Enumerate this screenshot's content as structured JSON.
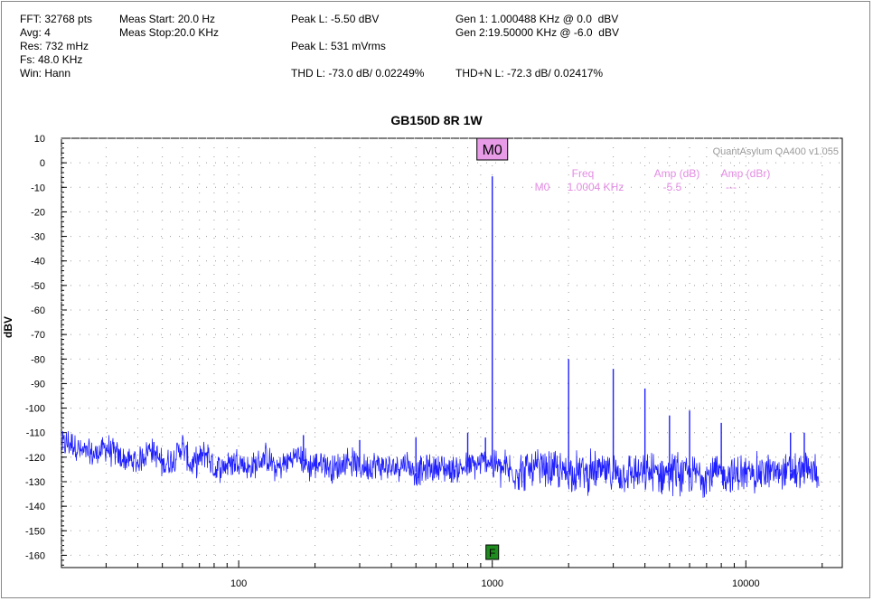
{
  "header": {
    "fft": "FFT: 32768 pts",
    "avg": "Avg: 4",
    "res": "Res: 732 mHz",
    "fs": "Fs: 48.0 KHz",
    "win": "Win: Hann",
    "meas_start": "Meas Start: 20.0 Hz",
    "meas_stop": "Meas Stop:20.0 KHz",
    "peak_dbv": "Peak L: -5.50 dBV",
    "peak_vrms": "Peak L: 531 mVrms",
    "thd": "THD L: -73.0 dB/ 0.02249%",
    "thdn": "THD+N L: -72.3 dB/ 0.02417%",
    "gen1": "Gen 1: 1.000488 KHz @ 0.0  dBV",
    "gen2": "Gen 2:19.50000 KHz @ -6.0  dBV"
  },
  "watermark": "QuantAsylum QA400 v1.055",
  "marker": {
    "label": "M0",
    "freq_header": "Freq",
    "amp_header": "Amp (dB)",
    "ampr_header": "Amp (dBr)",
    "row_name": "M0",
    "row_freq": "1.0004 KHz",
    "row_amp": "-5.5",
    "row_ampr": "---",
    "f_label": "F"
  },
  "colors": {
    "trace": "#1f1fff",
    "marker_bg": "#e89ce8",
    "marker_text": "#e38ce3",
    "f_bg": "#1e8c1e",
    "grid": "#9a9a9a"
  },
  "chart_data": {
    "type": "line",
    "title": "GB150D 8R 1W",
    "xlabel": "",
    "ylabel": "dBV",
    "xscale": "log",
    "xlim": [
      20,
      24000
    ],
    "ylim": [
      -165,
      10
    ],
    "x_ticks": [
      100,
      1000,
      10000
    ],
    "y_ticks": [
      10,
      0,
      -10,
      -20,
      -30,
      -40,
      -50,
      -60,
      -70,
      -80,
      -90,
      -100,
      -110,
      -120,
      -130,
      -140,
      -150,
      -160
    ],
    "grid": true,
    "noise_floor": [
      [
        20,
        -115
      ],
      [
        22,
        -114
      ],
      [
        24,
        -118
      ],
      [
        27,
        -119
      ],
      [
        30,
        -116
      ],
      [
        35,
        -121
      ],
      [
        40,
        -122
      ],
      [
        45,
        -116
      ],
      [
        50,
        -123
      ],
      [
        55,
        -121
      ],
      [
        60,
        -115
      ],
      [
        65,
        -124
      ],
      [
        70,
        -121
      ],
      [
        75,
        -118
      ],
      [
        80,
        -125
      ],
      [
        90,
        -123
      ],
      [
        100,
        -121
      ],
      [
        110,
        -125
      ],
      [
        120,
        -122
      ],
      [
        130,
        -120
      ],
      [
        140,
        -125
      ],
      [
        150,
        -123
      ],
      [
        170,
        -119
      ],
      [
        190,
        -124
      ],
      [
        210,
        -122
      ],
      [
        240,
        -125
      ],
      [
        270,
        -121
      ],
      [
        300,
        -124
      ],
      [
        350,
        -123
      ],
      [
        400,
        -125
      ],
      [
        450,
        -122
      ],
      [
        500,
        -126
      ],
      [
        600,
        -124
      ],
      [
        700,
        -125
      ],
      [
        800,
        -124
      ],
      [
        900,
        -123
      ],
      [
        950,
        -121
      ],
      [
        1050,
        -124
      ],
      [
        1200,
        -126
      ],
      [
        1500,
        -125
      ],
      [
        2000,
        -126
      ],
      [
        3000,
        -126
      ],
      [
        4000,
        -127
      ],
      [
        5000,
        -126
      ],
      [
        6000,
        -127
      ],
      [
        8000,
        -127
      ],
      [
        10000,
        -127
      ],
      [
        12000,
        -126
      ],
      [
        15000,
        -126
      ],
      [
        18000,
        -126
      ],
      [
        20000,
        -125
      ],
      [
        23000,
        -126
      ]
    ],
    "peaks": [
      {
        "x": 1000,
        "y": -5.5
      },
      {
        "x": 2000,
        "y": -80
      },
      {
        "x": 3000,
        "y": -84
      },
      {
        "x": 4000,
        "y": -92
      },
      {
        "x": 5000,
        "y": -103
      },
      {
        "x": 6000,
        "y": -101
      },
      {
        "x": 8000,
        "y": -106
      },
      {
        "x": 15000,
        "y": -110
      },
      {
        "x": 17000,
        "y": -110
      },
      {
        "x": 60,
        "y": -114
      },
      {
        "x": 180,
        "y": -111
      },
      {
        "x": 300,
        "y": -113
      },
      {
        "x": 500,
        "y": -112
      },
      {
        "x": 800,
        "y": -110
      },
      {
        "x": 940,
        "y": -112
      }
    ]
  }
}
